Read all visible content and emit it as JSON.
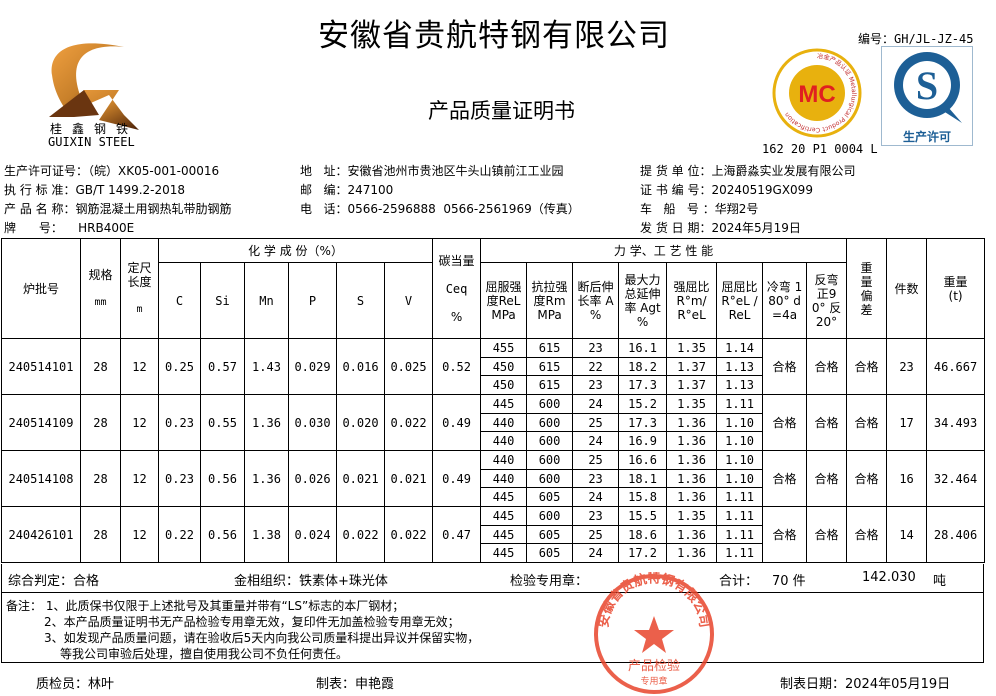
{
  "header": {
    "title": "安徽省贵航特钢有限公司",
    "subtitle": "产品质量证明书",
    "doc_code": "编号：GH/JL-JZ-45",
    "logo": {
      "cn": "桂鑫钢铁",
      "en": "GUIXIN  STEEL"
    },
    "mc_badge": {
      "text": "MC",
      "ring": "冶金产品认证 Metallurgical Product Certification",
      "number": "162 20 P1 0004 L",
      "color": "#e8b10e"
    },
    "qs_badge": {
      "text": "生产许可",
      "color": "#1d5f96"
    }
  },
  "info": {
    "left": [
      {
        "label": "生产许可证号：",
        "value": "（皖）XK05-001-00016"
      },
      {
        "label": "执 行 标 准：",
        "value": "GB/T 1499.2-2018"
      },
      {
        "label": "产 品 名 称：",
        "value": "钢筋混凝土用钢热轧带肋钢筋"
      },
      {
        "label": "牌      号：",
        "value": "    HRB400E"
      }
    ],
    "middle": [
      {
        "label": "地   址：",
        "value": "安徽省池州市贵池区牛头山镇前江工业园"
      },
      {
        "label": "邮   编：",
        "value": "247100"
      },
      {
        "label": "电   话：",
        "value": "0566-2596888  0566-2561969（传真）"
      }
    ],
    "right": [
      {
        "label": "提 货 单 位：",
        "value": "上海爵淼实业发展有限公司"
      },
      {
        "label": "证 书 编 号：",
        "value": "20240519GX099"
      },
      {
        "label": "车   船   号 ：",
        "value": "华翔2号"
      },
      {
        "label": "发 货 日 期：",
        "value": "2024年5月19日"
      }
    ]
  },
  "table": {
    "headers": {
      "batch": "炉批号",
      "spec": "规格",
      "spec_unit": "mm",
      "len": "定尺长度",
      "len_unit": "m",
      "chem": "化 学 成 份（%）",
      "elements": [
        "C",
        "Si",
        "Mn",
        "P",
        "S",
        "V"
      ],
      "ceq": "碳当量",
      "ceq_sym": "Ceq",
      "ceq_unit": "%",
      "mech": "力 学、工 艺 性 能",
      "mech_cols": [
        "屈服强度ReL MPa",
        "抗拉强度Rm MPa",
        "断后伸长率 A %",
        "最大力总延伸率 Agt %",
        "强屈比 R°m/ R°eL",
        "屈屈比 R°eL /ReL",
        "冷弯 180° d=4a",
        "反弯 正90° 反20°"
      ],
      "weight_dev": "重量偏差",
      "pieces": "件数",
      "weight": "重量(t)"
    },
    "rows": [
      {
        "batch": "240514101",
        "spec": "28",
        "len": "12",
        "chem": [
          "0.25",
          "0.57",
          "1.43",
          "0.029",
          "0.016",
          "0.025"
        ],
        "ceq": "0.52",
        "tests": [
          [
            "455",
            "615",
            "23",
            "16.1",
            "1.35",
            "1.14"
          ],
          [
            "450",
            "615",
            "22",
            "18.2",
            "1.37",
            "1.13"
          ],
          [
            "450",
            "615",
            "23",
            "17.3",
            "1.37",
            "1.13"
          ]
        ],
        "bend": "合格",
        "rebend": "合格",
        "dev": "合格",
        "pieces": "23",
        "weight": "46.667"
      },
      {
        "batch": "240514109",
        "spec": "28",
        "len": "12",
        "chem": [
          "0.23",
          "0.55",
          "1.36",
          "0.030",
          "0.020",
          "0.022"
        ],
        "ceq": "0.49",
        "tests": [
          [
            "445",
            "600",
            "24",
            "15.2",
            "1.35",
            "1.11"
          ],
          [
            "440",
            "600",
            "25",
            "17.3",
            "1.36",
            "1.10"
          ],
          [
            "440",
            "600",
            "24",
            "16.9",
            "1.36",
            "1.10"
          ]
        ],
        "bend": "合格",
        "rebend": "合格",
        "dev": "合格",
        "pieces": "17",
        "weight": "34.493"
      },
      {
        "batch": "240514108",
        "spec": "28",
        "len": "12",
        "chem": [
          "0.23",
          "0.56",
          "1.36",
          "0.026",
          "0.021",
          "0.021"
        ],
        "ceq": "0.49",
        "tests": [
          [
            "440",
            "600",
            "25",
            "16.6",
            "1.36",
            "1.10"
          ],
          [
            "440",
            "600",
            "23",
            "18.1",
            "1.36",
            "1.10"
          ],
          [
            "445",
            "605",
            "24",
            "15.8",
            "1.36",
            "1.11"
          ]
        ],
        "bend": "合格",
        "rebend": "合格",
        "dev": "合格",
        "pieces": "16",
        "weight": "32.464"
      },
      {
        "batch": "240426101",
        "spec": "28",
        "len": "12",
        "chem": [
          "0.22",
          "0.56",
          "1.38",
          "0.024",
          "0.022",
          "0.022"
        ],
        "ceq": "0.47",
        "tests": [
          [
            "445",
            "600",
            "23",
            "15.5",
            "1.35",
            "1.11"
          ],
          [
            "445",
            "605",
            "25",
            "18.6",
            "1.36",
            "1.11"
          ],
          [
            "445",
            "605",
            "24",
            "17.2",
            "1.36",
            "1.11"
          ]
        ],
        "bend": "合格",
        "rebend": "合格",
        "dev": "合格",
        "pieces": "14",
        "weight": "28.406"
      }
    ]
  },
  "summary": {
    "judgement": "综合判定：合格",
    "structure": "金相组织：铁素体+珠光体",
    "stamp_label": "检验专用章：",
    "total_label": "合计：",
    "total_pieces": "70 件",
    "total_weight": "142.030",
    "weight_unit": "吨"
  },
  "notes": [
    "备注： 1、此质保书仅限于上述批号及其重量并带有“LS”标志的本厂钢材；",
    "2、本产品质量证明书无产品检验专用章无效，复印件无加盖检验专用章无效；",
    "3、如发现产品质量问题，请在验收后5天内向我公司质量科提出异议并保留实物，",
    "   等我公司审验后处理，擅自使用我公司不负任何责任。"
  ],
  "stamp": {
    "ring": "安徽省贵航特钢有限公司",
    "center": "产品检验",
    "bottom": "专用章",
    "color": "#e8452c"
  },
  "footer": {
    "inspector": "质检员：林叶",
    "preparer": "制表：申艳霞",
    "date": "制表日期：2024年05月19日"
  }
}
